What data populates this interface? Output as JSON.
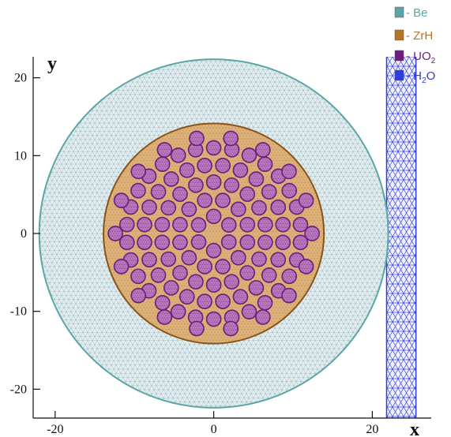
{
  "legend": {
    "items": [
      {
        "label": "- Be",
        "color": "#5aa6a6"
      },
      {
        "label": "- ZrH",
        "color": "#b5742a"
      },
      {
        "label": "- UO",
        "sub": "2",
        "color": "#6e1d7a"
      },
      {
        "label": "- H",
        "sub": "2",
        "tail": "O",
        "color": "#2f3be0"
      }
    ]
  },
  "axes": {
    "x_title": "x",
    "y_title": "y",
    "x_ticks": [
      {
        "value": -20,
        "label": "-20"
      },
      {
        "value": 0,
        "label": "0"
      },
      {
        "value": 20,
        "label": "20"
      }
    ],
    "y_ticks": [
      {
        "value": 20,
        "label": "20"
      },
      {
        "value": 10,
        "label": "10"
      },
      {
        "value": 0,
        "label": "0"
      },
      {
        "value": -10,
        "label": "-10"
      },
      {
        "value": -20,
        "label": "-20"
      }
    ]
  },
  "geometry": {
    "be_radius": 22,
    "zrh_radius": 13.9,
    "rod_radius": 0.9,
    "rod_ring_radii": [
      2.2,
      4.4,
      6.6,
      8.8,
      11.0,
      12.4
    ],
    "rod_ring_counts": [
      6,
      12,
      18,
      24,
      30,
      18
    ],
    "water_x_range": [
      21.8,
      25.5
    ],
    "x_range": [
      -24.5,
      25.5
    ],
    "y_range": [
      -24.5,
      24.5
    ]
  }
}
